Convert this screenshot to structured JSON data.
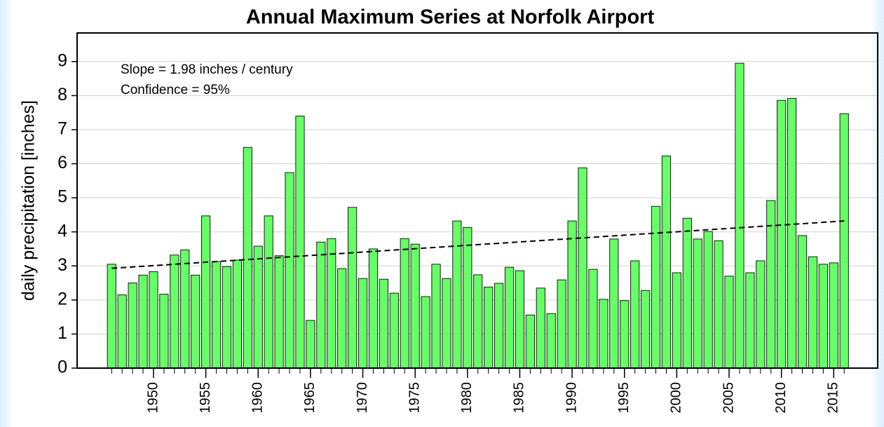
{
  "chart_data": {
    "type": "bar",
    "title": "Annual Maximum Series at Norfolk Airport",
    "ylabel": "daily precipitation [inches]",
    "annotations": [
      "Slope = 1.98 inches / century",
      "Confidence = 95%"
    ],
    "x": [
      1946,
      1947,
      1948,
      1949,
      1950,
      1951,
      1952,
      1953,
      1954,
      1955,
      1956,
      1957,
      1958,
      1959,
      1960,
      1961,
      1962,
      1963,
      1964,
      1965,
      1966,
      1967,
      1968,
      1969,
      1970,
      1971,
      1972,
      1973,
      1974,
      1975,
      1976,
      1977,
      1978,
      1979,
      1980,
      1981,
      1982,
      1983,
      1984,
      1985,
      1986,
      1987,
      1988,
      1989,
      1990,
      1991,
      1992,
      1993,
      1994,
      1995,
      1996,
      1997,
      1998,
      1999,
      2000,
      2001,
      2002,
      2003,
      2004,
      2005,
      2006,
      2007,
      2008,
      2009,
      2010,
      2011,
      2012,
      2013,
      2014,
      2015,
      2016
    ],
    "values": [
      3.05,
      2.15,
      2.5,
      2.73,
      2.83,
      2.17,
      3.32,
      3.47,
      2.73,
      4.47,
      3.13,
      2.98,
      3.17,
      6.48,
      3.58,
      4.47,
      3.3,
      5.74,
      7.4,
      1.4,
      3.7,
      3.8,
      2.92,
      4.72,
      2.63,
      3.5,
      2.61,
      2.2,
      3.8,
      3.64,
      2.1,
      3.05,
      2.63,
      4.32,
      4.13,
      2.74,
      2.38,
      2.49,
      2.96,
      2.86,
      1.56,
      2.35,
      1.6,
      2.59,
      4.32,
      5.88,
      2.9,
      2.02,
      3.79,
      1.98,
      3.15,
      2.28,
      4.75,
      6.23,
      2.8,
      4.4,
      3.79,
      4.01,
      3.74,
      2.7,
      8.95,
      2.8,
      3.15,
      4.92,
      7.86,
      7.92,
      3.89,
      3.27,
      3.05,
      3.09,
      7.47
    ],
    "color": "#66ff66",
    "trend": {
      "x": [
        1946,
        2016
      ],
      "values": [
        2.93,
        4.32
      ],
      "color": "#000000"
    },
    "xlim": [
      1942.7,
      2019.2
    ],
    "xticks": [
      1950,
      1955,
      1960,
      1965,
      1970,
      1975,
      1980,
      1985,
      1990,
      1995,
      2000,
      2005,
      2010,
      2015
    ],
    "ylim": [
      0,
      9.84
    ],
    "yticks": [
      0,
      1,
      2,
      3,
      4,
      5,
      6,
      7,
      8,
      9
    ],
    "grid": true
  }
}
